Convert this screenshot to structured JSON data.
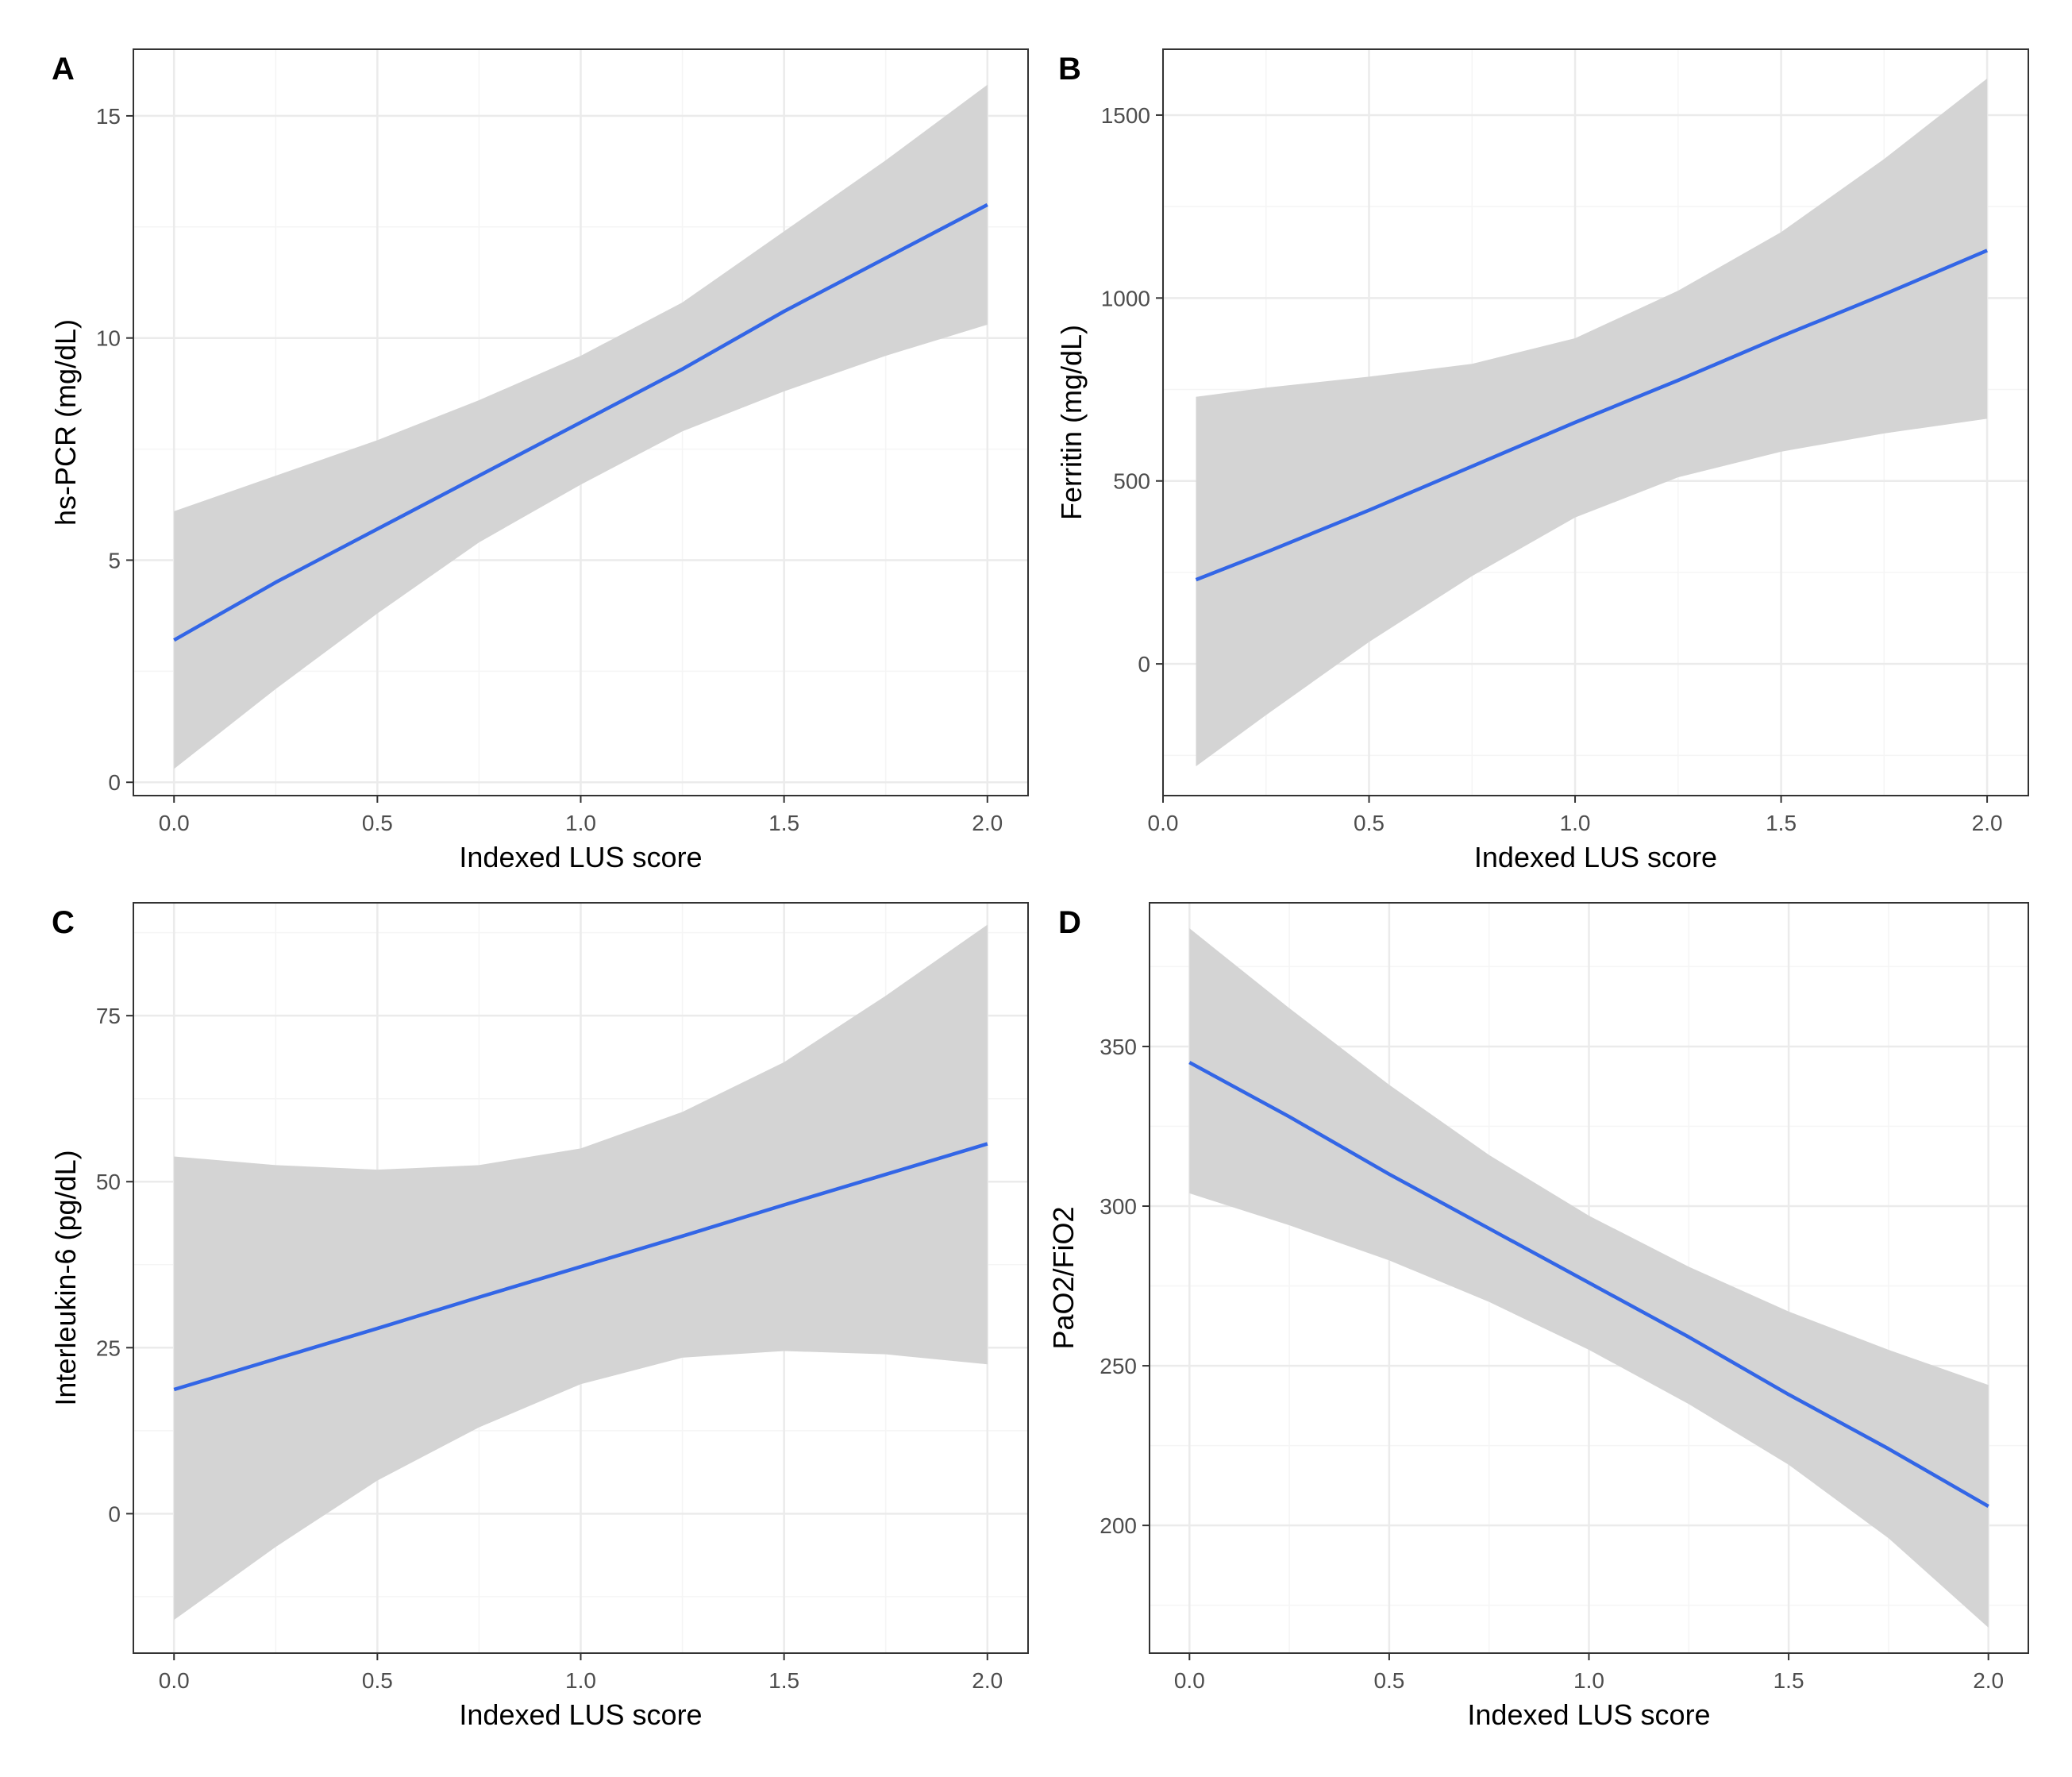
{
  "colors": {
    "line": "#3366e6",
    "band": "#d4d4d4",
    "grid_major": "#ebebeb",
    "grid_minor": "#f5f5f5",
    "frame": "#333333",
    "tick_text": "#4d4d4d"
  },
  "chart_data": [
    {
      "panel": "A",
      "type": "line",
      "xlabel": "Indexed LUS score",
      "ylabel": "hs-PCR (mg/dL)",
      "xlim": [
        -0.1,
        2.1
      ],
      "ylim": [
        -0.3,
        16.5
      ],
      "xticks": [
        0.0,
        0.5,
        1.0,
        1.5,
        2.0
      ],
      "xtick_labels": [
        "0.0",
        "0.5",
        "1.0",
        "1.5",
        "2.0"
      ],
      "yticks": [
        0,
        5,
        10,
        15
      ],
      "ytick_labels": [
        "0",
        "5",
        "10",
        "15"
      ],
      "grid": true,
      "series": [
        {
          "x": [
            0.0,
            0.25,
            0.5,
            0.75,
            1.0,
            1.25,
            1.5,
            1.75,
            2.0
          ],
          "y": [
            3.2,
            4.5,
            5.7,
            6.9,
            8.1,
            9.3,
            10.6,
            11.8,
            13.0
          ],
          "lower": [
            0.3,
            2.1,
            3.8,
            5.4,
            6.7,
            7.9,
            8.8,
            9.6,
            10.3
          ],
          "upper": [
            6.1,
            6.9,
            7.7,
            8.6,
            9.6,
            10.8,
            12.4,
            14.0,
            15.7
          ]
        }
      ]
    },
    {
      "panel": "B",
      "type": "line",
      "xlabel": "Indexed LUS score",
      "ylabel": "Ferritin (mg/dL)",
      "xlim": [
        -0.0,
        2.1
      ],
      "ylim": [
        -360,
        1680
      ],
      "xticks": [
        0.0,
        0.5,
        1.0,
        1.5,
        2.0
      ],
      "xtick_labels": [
        "0.0",
        "0.5",
        "1.0",
        "1.5",
        "2.0"
      ],
      "yticks": [
        0,
        500,
        1000,
        1500
      ],
      "ytick_labels": [
        "0",
        "500",
        "1000",
        "1500"
      ],
      "grid": true,
      "series": [
        {
          "x": [
            0.08,
            0.25,
            0.5,
            0.75,
            1.0,
            1.25,
            1.5,
            1.75,
            2.0
          ],
          "y": [
            230,
            305,
            420,
            540,
            660,
            775,
            895,
            1010,
            1130
          ],
          "lower": [
            -280,
            -140,
            60,
            240,
            400,
            510,
            580,
            630,
            670
          ],
          "upper": [
            730,
            755,
            785,
            820,
            890,
            1020,
            1180,
            1380,
            1600
          ]
        }
      ]
    },
    {
      "panel": "C",
      "type": "line",
      "xlabel": "Indexed LUS score",
      "ylabel": "Interleukin-6 (pg/dL)",
      "xlim": [
        -0.1,
        2.1
      ],
      "ylim": [
        -21,
        92
      ],
      "xticks": [
        0.0,
        0.5,
        1.0,
        1.5,
        2.0
      ],
      "xtick_labels": [
        "0.0",
        "0.5",
        "1.0",
        "1.5",
        "2.0"
      ],
      "yticks": [
        0,
        25,
        50,
        75
      ],
      "ytick_labels": [
        "0",
        "25",
        "50",
        "75"
      ],
      "grid": true,
      "series": [
        {
          "x": [
            0.0,
            0.25,
            0.5,
            0.75,
            1.0,
            1.25,
            1.5,
            1.75,
            2.0
          ],
          "y": [
            18.7,
            23.3,
            27.9,
            32.6,
            37.2,
            41.8,
            46.5,
            51.1,
            55.7
          ],
          "lower": [
            -16,
            -5,
            5,
            13,
            19.5,
            23.5,
            24.5,
            24,
            22.5
          ],
          "upper": [
            53.8,
            52.5,
            51.8,
            52.5,
            55,
            60.5,
            68,
            78,
            88.7
          ]
        }
      ]
    },
    {
      "panel": "D",
      "type": "line",
      "xlabel": "Indexed LUS score",
      "ylabel": "PaO2/FiO2",
      "xlim": [
        -0.1,
        2.1
      ],
      "ylim": [
        160,
        395
      ],
      "xticks": [
        0.0,
        0.5,
        1.0,
        1.5,
        2.0
      ],
      "xtick_labels": [
        "0.0",
        "0.5",
        "1.0",
        "1.5",
        "2.0"
      ],
      "yticks": [
        200,
        250,
        300,
        350
      ],
      "ytick_labels": [
        "200",
        "250",
        "300",
        "350"
      ],
      "grid": true,
      "series": [
        {
          "x": [
            0.0,
            0.25,
            0.5,
            0.75,
            1.0,
            1.25,
            1.5,
            1.75,
            2.0
          ],
          "y": [
            345,
            328,
            310,
            293,
            276,
            259,
            241,
            224,
            206
          ],
          "lower": [
            304,
            294,
            283,
            270,
            255,
            238,
            219,
            196,
            168
          ],
          "upper": [
            387,
            362,
            338,
            316,
            297,
            281,
            267,
            255,
            244
          ]
        }
      ]
    }
  ]
}
